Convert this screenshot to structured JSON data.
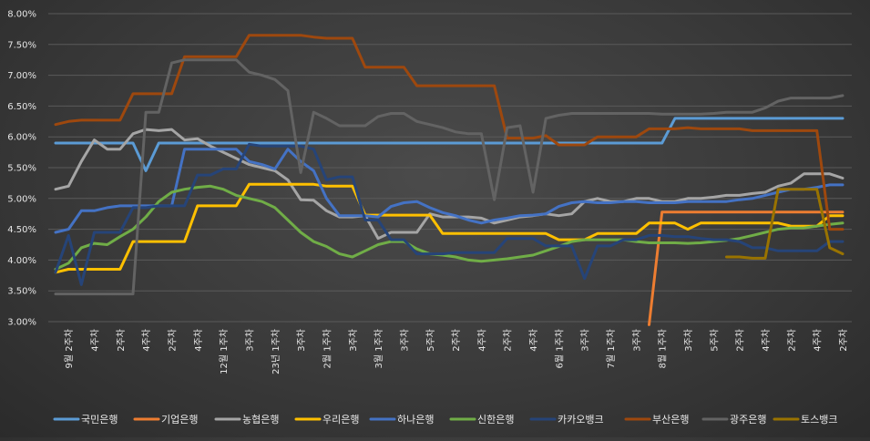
{
  "chart_data": {
    "type": "line",
    "y_unit": "%",
    "ylim": [
      3.0,
      8.0
    ],
    "yticks": [
      "3.00%",
      "3.50%",
      "4.00%",
      "4.50%",
      "5.00%",
      "5.50%",
      "6.00%",
      "6.50%",
      "7.00%",
      "7.50%",
      "8.00%"
    ],
    "x_labels": [
      "9월 2주차",
      "4주차",
      "2주차",
      "4주차",
      "2주차",
      "4주차",
      "12월 1주차",
      "3주차",
      "23년 1주차",
      "3주차",
      "2월 1주차",
      "3주차",
      "3월 1주차",
      "3주차",
      "5주차",
      "2주차",
      "4주차",
      "2주차",
      "4주차",
      "6월 1주차",
      "3주차",
      "7월 1주차",
      "3주차",
      "8월 1주차",
      "3주차",
      "5주차",
      "2주차",
      "4주차",
      "2주차",
      "4주차",
      "2주차"
    ],
    "x_label_positions": [
      1,
      3,
      5,
      7,
      9,
      11,
      13,
      15,
      17,
      19,
      21,
      23,
      25,
      27,
      29,
      31,
      33,
      35,
      37,
      39,
      41,
      43,
      45,
      47,
      49,
      51,
      53,
      55,
      57,
      59,
      61
    ],
    "grid": true,
    "legend_position": "bottom",
    "n_points": 62,
    "series": [
      {
        "name": "국민은행",
        "color": "#5b9bd5",
        "start": 0,
        "values": [
          5.9,
          5.9,
          5.9,
          5.9,
          5.9,
          5.9,
          5.9,
          5.45,
          5.9,
          5.9,
          5.9,
          5.9,
          5.9,
          5.9,
          5.9,
          5.9,
          5.9,
          5.9,
          5.9,
          5.9,
          5.9,
          5.9,
          5.9,
          5.9,
          5.9,
          5.9,
          5.9,
          5.9,
          5.9,
          5.9,
          5.9,
          5.9,
          5.9,
          5.9,
          5.9,
          5.9,
          5.9,
          5.9,
          5.9,
          5.9,
          5.9,
          5.9,
          5.9,
          5.9,
          5.9,
          5.9,
          5.9,
          5.9,
          6.3,
          6.3,
          6.3,
          6.3,
          6.3,
          6.3,
          6.3,
          6.3,
          6.3,
          6.3,
          6.3,
          6.3,
          6.3,
          6.3
        ]
      },
      {
        "name": "기업은행",
        "color": "#ed7d31",
        "start": 46,
        "values": [
          2.95,
          4.78,
          4.78,
          4.78,
          4.78,
          4.78,
          4.78,
          4.78,
          4.78,
          4.78,
          4.78,
          4.78,
          4.78,
          4.78,
          4.78,
          4.78
        ]
      },
      {
        "name": "농협은행",
        "color": "#a5a5a5",
        "start": 0,
        "values": [
          5.15,
          5.2,
          5.6,
          5.95,
          5.8,
          5.8,
          6.05,
          6.12,
          6.1,
          6.12,
          5.95,
          5.97,
          5.85,
          5.75,
          5.65,
          5.55,
          5.5,
          5.45,
          5.3,
          4.98,
          4.97,
          4.8,
          4.7,
          4.7,
          4.72,
          4.35,
          4.45,
          4.45,
          4.45,
          4.75,
          4.7,
          4.7,
          4.7,
          4.68,
          4.6,
          4.65,
          4.7,
          4.72,
          4.75,
          4.72,
          4.75,
          4.95,
          5.0,
          4.95,
          4.95,
          5.0,
          5.0,
          4.95,
          4.95,
          5.0,
          5.0,
          5.02,
          5.05,
          5.05,
          5.08,
          5.1,
          5.2,
          5.25,
          5.4,
          5.4,
          5.4,
          5.33
        ]
      },
      {
        "name": "우리은행",
        "color": "#ffc000",
        "start": 0,
        "values": [
          3.8,
          3.85,
          3.85,
          3.85,
          3.85,
          3.85,
          4.3,
          4.3,
          4.3,
          4.3,
          4.3,
          4.88,
          4.88,
          4.88,
          4.88,
          5.23,
          5.23,
          5.23,
          5.23,
          5.23,
          5.23,
          5.2,
          5.2,
          5.2,
          4.73,
          4.73,
          4.73,
          4.73,
          4.73,
          4.73,
          4.43,
          4.43,
          4.43,
          4.43,
          4.43,
          4.43,
          4.43,
          4.43,
          4.43,
          4.33,
          4.33,
          4.33,
          4.43,
          4.43,
          4.43,
          4.43,
          4.6,
          4.6,
          4.6,
          4.5,
          4.6,
          4.6,
          4.6,
          4.6,
          4.6,
          4.6,
          4.6,
          4.55,
          4.55,
          4.55,
          4.72,
          4.72
        ]
      },
      {
        "name": "하나은행",
        "color": "#4472c4",
        "start": 0,
        "values": [
          4.45,
          4.5,
          4.8,
          4.8,
          4.85,
          4.88,
          4.88,
          4.88,
          4.88,
          4.88,
          5.8,
          5.8,
          5.8,
          5.8,
          5.8,
          5.6,
          5.55,
          5.48,
          5.8,
          5.6,
          5.45,
          5.0,
          4.72,
          4.72,
          4.72,
          4.7,
          4.87,
          4.93,
          4.95,
          4.85,
          4.77,
          4.72,
          4.65,
          4.6,
          4.65,
          4.68,
          4.72,
          4.73,
          4.75,
          4.87,
          4.93,
          4.95,
          4.93,
          4.93,
          4.95,
          4.95,
          4.93,
          4.93,
          4.93,
          4.95,
          4.95,
          4.95,
          4.95,
          4.98,
          5.0,
          5.05,
          5.1,
          5.15,
          5.15,
          5.18,
          5.22,
          5.22
        ]
      },
      {
        "name": "신한은행",
        "color": "#70ad47",
        "start": 0,
        "values": [
          3.85,
          3.95,
          4.2,
          4.27,
          4.25,
          4.38,
          4.5,
          4.7,
          4.95,
          5.1,
          5.15,
          5.18,
          5.2,
          5.15,
          5.05,
          5.0,
          4.95,
          4.85,
          4.65,
          4.45,
          4.3,
          4.22,
          4.1,
          4.05,
          4.15,
          4.25,
          4.3,
          4.3,
          4.18,
          4.1,
          4.08,
          4.05,
          4.0,
          3.98,
          4.0,
          4.02,
          4.05,
          4.08,
          4.15,
          4.22,
          4.3,
          4.33,
          4.33,
          4.33,
          4.33,
          4.3,
          4.28,
          4.28,
          4.28,
          4.27,
          4.28,
          4.3,
          4.32,
          4.35,
          4.4,
          4.45,
          4.5,
          4.52,
          4.52,
          4.55,
          4.58,
          4.6
        ]
      },
      {
        "name": "카카오뱅크",
        "color": "#264478",
        "start": 0,
        "values": [
          3.8,
          4.4,
          3.6,
          4.45,
          4.45,
          4.45,
          4.85,
          4.85,
          4.88,
          4.88,
          4.88,
          5.38,
          5.38,
          5.48,
          5.48,
          5.88,
          5.85,
          5.85,
          5.85,
          5.85,
          5.8,
          5.3,
          5.35,
          5.35,
          4.65,
          4.65,
          4.33,
          4.33,
          4.1,
          4.1,
          4.1,
          4.12,
          4.12,
          4.12,
          4.12,
          4.35,
          4.35,
          4.35,
          4.23,
          4.23,
          4.23,
          3.7,
          4.23,
          4.23,
          4.33,
          4.33,
          4.4,
          4.4,
          4.38,
          4.38,
          4.35,
          4.33,
          4.33,
          4.3,
          4.2,
          4.2,
          4.15,
          4.15,
          4.15,
          4.15,
          4.3,
          4.3
        ]
      },
      {
        "name": "부산은행",
        "color": "#9e480e",
        "start": 0,
        "values": [
          6.2,
          6.25,
          6.27,
          6.27,
          6.27,
          6.27,
          6.7,
          6.7,
          6.7,
          6.7,
          7.3,
          7.3,
          7.3,
          7.3,
          7.3,
          7.65,
          7.65,
          7.65,
          7.65,
          7.65,
          7.62,
          7.6,
          7.6,
          7.6,
          7.13,
          7.13,
          7.13,
          7.13,
          6.83,
          6.83,
          6.83,
          6.83,
          6.83,
          6.83,
          6.83,
          5.98,
          5.98,
          5.98,
          6.02,
          5.87,
          5.87,
          5.87,
          6.0,
          6.0,
          6.0,
          6.0,
          6.13,
          6.13,
          6.13,
          6.15,
          6.13,
          6.13,
          6.13,
          6.13,
          6.1,
          6.1,
          6.1,
          6.1,
          6.1,
          6.1,
          4.5,
          4.5
        ]
      },
      {
        "name": "광주은행",
        "color": "#636363",
        "start": 0,
        "values": [
          3.45,
          3.45,
          3.45,
          3.45,
          3.45,
          3.45,
          3.45,
          6.4,
          6.4,
          7.2,
          7.25,
          7.25,
          7.25,
          7.25,
          7.25,
          7.05,
          7.0,
          6.93,
          6.75,
          5.42,
          6.4,
          6.3,
          6.18,
          6.18,
          6.18,
          6.33,
          6.38,
          6.38,
          6.25,
          6.2,
          6.15,
          6.08,
          6.05,
          6.05,
          4.98,
          6.15,
          6.18,
          5.1,
          6.3,
          6.35,
          6.38,
          6.38,
          6.38,
          6.38,
          6.38,
          6.38,
          6.38,
          6.37,
          6.37,
          6.37,
          6.37,
          6.38,
          6.4,
          6.4,
          6.4,
          6.47,
          6.58,
          6.63,
          6.63,
          6.63,
          6.63,
          6.67
        ]
      },
      {
        "name": "토스뱅크",
        "color": "#997300",
        "start": 52,
        "values": [
          4.05,
          4.05,
          4.03,
          4.03,
          5.15,
          5.15,
          5.15,
          5.15,
          4.2,
          4.1
        ]
      }
    ]
  }
}
